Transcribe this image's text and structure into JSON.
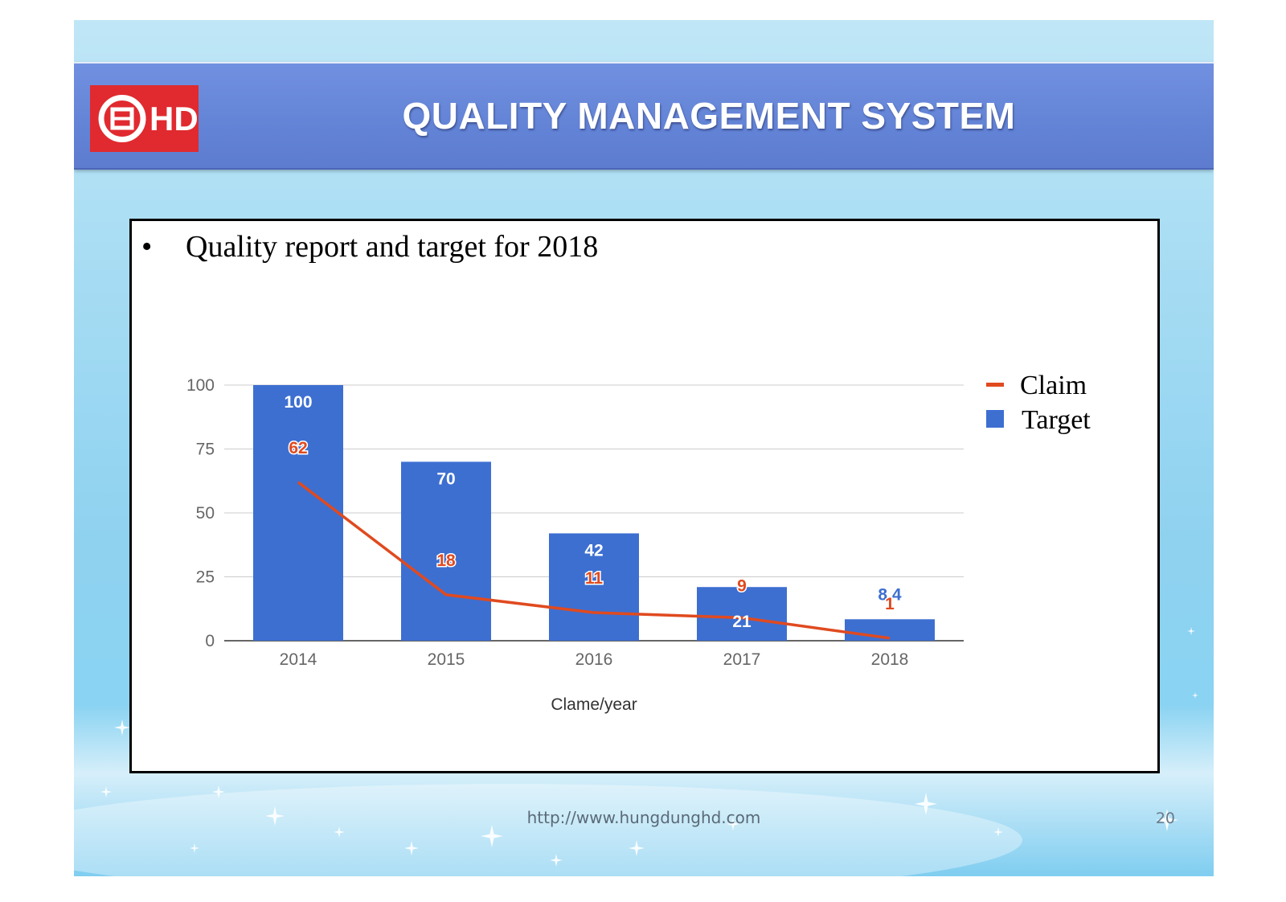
{
  "slide": {
    "title": "QUALITY MANAGEMENT SYSTEM",
    "logo_text": "HD",
    "bullet": "Quality report and target for 2018",
    "footer_url": "http://www.hungdunghd.com",
    "page_number": "20"
  },
  "colors": {
    "header_band": "#6686d9",
    "logo_bg": "#e02a2f",
    "target_bar": "#3d6fd1",
    "claim_line": "#e04a1f"
  },
  "chart_data": {
    "type": "bar",
    "categories": [
      "2014",
      "2015",
      "2016",
      "2017",
      "2018"
    ],
    "series": [
      {
        "name": "Target",
        "type": "bar",
        "values": [
          100,
          70,
          42,
          21,
          8.4
        ],
        "labels": [
          "100",
          "70",
          "42",
          "21",
          "8.4"
        ],
        "color": "#3d6fd1"
      },
      {
        "name": "Claim",
        "type": "line",
        "values": [
          62,
          18,
          11,
          9,
          1
        ],
        "labels": [
          "62",
          "18",
          "11",
          "9",
          "1"
        ],
        "color": "#e04a1f"
      }
    ],
    "title": "",
    "xlabel": "Clame/year",
    "ylabel": "",
    "ylim": [
      0,
      100
    ],
    "yticks": [
      "0",
      "25",
      "50",
      "75",
      "100"
    ],
    "grid": true,
    "legend_position": "right"
  }
}
